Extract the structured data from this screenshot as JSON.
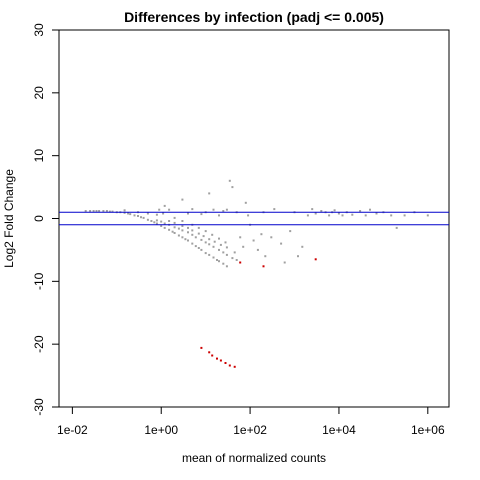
{
  "chart_data": {
    "type": "scatter",
    "title": "Differences by infection (padj <= 0.005)",
    "xlabel": "mean of normalized counts",
    "ylabel": "Log2 Fold Change",
    "x_scale": "log10",
    "xlim": [
      0.005,
      3000000
    ],
    "ylim": [
      -30,
      30
    ],
    "x_ticks": [
      {
        "value": 0.01,
        "label": "1e-02"
      },
      {
        "value": 1,
        "label": "1e+00"
      },
      {
        "value": 100,
        "label": "1e+02"
      },
      {
        "value": 10000,
        "label": "1e+04"
      },
      {
        "value": 1000000,
        "label": "1e+06"
      }
    ],
    "y_ticks": [
      {
        "value": -30,
        "label": "-30"
      },
      {
        "value": -20,
        "label": "-20"
      },
      {
        "value": -10,
        "label": "-10"
      },
      {
        "value": 0,
        "label": "0"
      },
      {
        "value": 10,
        "label": "10"
      },
      {
        "value": 20,
        "label": "20"
      },
      {
        "value": 30,
        "label": "30"
      }
    ],
    "hlines": [
      1,
      -1
    ],
    "hline_color": "#0000cc",
    "grid": false,
    "series": [
      {
        "color": "#a0a0a0",
        "points": [
          [
            0.02,
            1.2
          ],
          [
            0.025,
            1.2
          ],
          [
            0.03,
            1.2
          ],
          [
            0.035,
            1.2
          ],
          [
            0.04,
            1.2
          ],
          [
            0.05,
            1.2
          ],
          [
            0.06,
            1.2
          ],
          [
            0.07,
            1.1
          ],
          [
            0.08,
            1.1
          ],
          [
            0.1,
            1.0
          ],
          [
            0.12,
            1.0
          ],
          [
            0.15,
            0.9
          ],
          [
            0.18,
            0.8
          ],
          [
            0.2,
            0.7
          ],
          [
            0.25,
            0.5
          ],
          [
            0.3,
            0.4
          ],
          [
            0.35,
            0.2
          ],
          [
            0.4,
            0.1
          ],
          [
            0.5,
            -0.2
          ],
          [
            0.6,
            -0.4
          ],
          [
            0.7,
            -0.6
          ],
          [
            0.8,
            -0.8
          ],
          [
            1,
            -1.2
          ],
          [
            1.2,
            -1.5
          ],
          [
            1.5,
            -1.8
          ],
          [
            1.8,
            -2.1
          ],
          [
            2,
            -2.3
          ],
          [
            2.5,
            -2.7
          ],
          [
            3,
            -3.0
          ],
          [
            3.5,
            -3.3
          ],
          [
            4,
            -3.5
          ],
          [
            5,
            -4.0
          ],
          [
            6,
            -4.4
          ],
          [
            7,
            -4.7
          ],
          [
            8,
            -5.0
          ],
          [
            10,
            -5.5
          ],
          [
            12,
            -5.8
          ],
          [
            15,
            -6.2
          ],
          [
            18,
            -6.6
          ],
          [
            20,
            -6.8
          ],
          [
            25,
            -7.2
          ],
          [
            30,
            -7.6
          ],
          [
            0.8,
            -0.3
          ],
          [
            1,
            -0.5
          ],
          [
            1.2,
            -0.8
          ],
          [
            1.5,
            -1.0
          ],
          [
            2,
            -1.4
          ],
          [
            2.5,
            -1.6
          ],
          [
            3,
            -1.9
          ],
          [
            4,
            -2.2
          ],
          [
            5,
            -2.6
          ],
          [
            6,
            -3.0
          ],
          [
            8,
            -3.4
          ],
          [
            10,
            -3.8
          ],
          [
            12,
            -4.1
          ],
          [
            15,
            -4.5
          ],
          [
            20,
            -5.0
          ],
          [
            25,
            -5.4
          ],
          [
            30,
            -5.8
          ],
          [
            40,
            -6.3
          ],
          [
            50,
            -6.6
          ],
          [
            1.5,
            -0.4
          ],
          [
            2,
            -0.7
          ],
          [
            3,
            -1.2
          ],
          [
            4,
            -1.5
          ],
          [
            5,
            -1.9
          ],
          [
            7,
            -2.4
          ],
          [
            9,
            -2.8
          ],
          [
            12,
            -3.3
          ],
          [
            16,
            -3.7
          ],
          [
            22,
            -4.2
          ],
          [
            30,
            -4.6
          ],
          [
            45,
            -5.4
          ],
          [
            2,
            0.1
          ],
          [
            3,
            -0.4
          ],
          [
            5,
            -1.0
          ],
          [
            7,
            -1.5
          ],
          [
            10,
            -2.0
          ],
          [
            14,
            -2.6
          ],
          [
            20,
            -3.2
          ],
          [
            28,
            -3.8
          ],
          [
            0.15,
            1.3
          ],
          [
            0.3,
            1.0
          ],
          [
            0.5,
            0.8
          ],
          [
            0.8,
            0.6
          ],
          [
            0.9,
            1.4
          ],
          [
            1.1,
            0.8
          ],
          [
            1.2,
            2.0
          ],
          [
            3,
            3.0
          ],
          [
            1.5,
            1.4
          ],
          [
            4,
            0.8
          ],
          [
            5,
            1.5
          ],
          [
            8,
            0.7
          ],
          [
            10,
            1.0
          ],
          [
            12,
            4.0
          ],
          [
            15,
            1.4
          ],
          [
            20,
            0.5
          ],
          [
            25,
            1.2
          ],
          [
            30,
            1.4
          ],
          [
            35,
            6.0
          ],
          [
            40,
            5.0
          ],
          [
            50,
            1.0
          ],
          [
            60,
            -3.0
          ],
          [
            70,
            -4.5
          ],
          [
            80,
            2.5
          ],
          [
            90,
            0.5
          ],
          [
            100,
            -1.0
          ],
          [
            120,
            -3.5
          ],
          [
            150,
            -5.0
          ],
          [
            180,
            -2.5
          ],
          [
            200,
            1.0
          ],
          [
            220,
            -6.0
          ],
          [
            300,
            -3.0
          ],
          [
            350,
            1.5
          ],
          [
            500,
            -4.0
          ],
          [
            600,
            -7.0
          ],
          [
            800,
            -2.0
          ],
          [
            1000,
            1.0
          ],
          [
            1200,
            -6.0
          ],
          [
            1500,
            -4.5
          ],
          [
            2000,
            0.5
          ],
          [
            2500,
            1.5
          ],
          [
            3000,
            0.8
          ],
          [
            4000,
            1.2
          ],
          [
            5000,
            1.0
          ],
          [
            6000,
            0.5
          ],
          [
            7000,
            1.0
          ],
          [
            8000,
            1.3
          ],
          [
            10000,
            0.8
          ],
          [
            12000,
            0.5
          ],
          [
            15000,
            1.0
          ],
          [
            20000,
            0.6
          ],
          [
            30000,
            1.2
          ],
          [
            40000,
            0.5
          ],
          [
            50000,
            1.4
          ],
          [
            70000,
            0.8
          ],
          [
            100000,
            1.0
          ],
          [
            150000,
            0.5
          ],
          [
            200000,
            -1.5
          ],
          [
            300000,
            0.5
          ],
          [
            500000,
            1.0
          ],
          [
            1000000,
            0.5
          ]
        ]
      },
      {
        "color": "#cc0000",
        "points": [
          [
            8,
            -20.6
          ],
          [
            12,
            -21.3
          ],
          [
            14,
            -21.8
          ],
          [
            18,
            -22.3
          ],
          [
            22,
            -22.6
          ],
          [
            28,
            -23.0
          ],
          [
            35,
            -23.4
          ],
          [
            45,
            -23.6
          ],
          [
            60,
            -7.0
          ],
          [
            200,
            -7.6
          ],
          [
            3000,
            -6.5
          ]
        ]
      }
    ]
  }
}
